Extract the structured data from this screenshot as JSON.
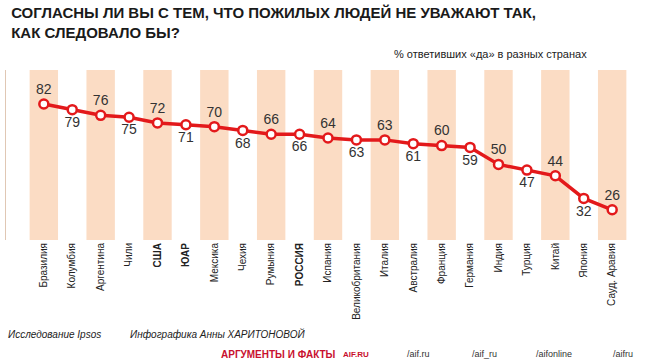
{
  "chart_data": {
    "type": "line",
    "title": "СОГЛАСНЫ ЛИ ВЫ С ТЕМ, ЧТО ПОЖИЛЫХ ЛЮДЕЙ НЕ УВАЖАЮТ ТАК, КАК СЛЕДОВАЛО БЫ?",
    "subtitle": "% ответивших «да» в разных странах",
    "categories": [
      "Бразилия",
      "Колумбия",
      "Аргентина",
      "Чили",
      "США",
      "ЮАР",
      "Мексика",
      "Чехия",
      "Румыния",
      "РОССИЯ",
      "Испания",
      "Великобритания",
      "Италия",
      "Австралия",
      "Франция",
      "Германия",
      "Индия",
      "Турция",
      "Китай",
      "Япония",
      "Сауд. Аравия"
    ],
    "values": [
      82,
      79,
      76,
      75,
      72,
      71,
      70,
      68,
      66,
      66,
      64,
      63,
      63,
      61,
      60,
      59,
      50,
      47,
      44,
      32,
      26
    ],
    "color": "#e3191b",
    "ylim": [
      10,
      100
    ],
    "data_labels": true,
    "tick_labels": "x",
    "grid": false,
    "marker": "circle",
    "line_style": "solid",
    "annotations": [
      "Исследование Ipsos",
      "Инфографика Анны ХАРИТОНОВОЙ",
      "АРГУМЕНТЫ И ФАКТЫ",
      "AIF.RU",
      "/aif.ru",
      "/aif_ru",
      "/aifonline",
      "/aifru"
    ]
  }
}
